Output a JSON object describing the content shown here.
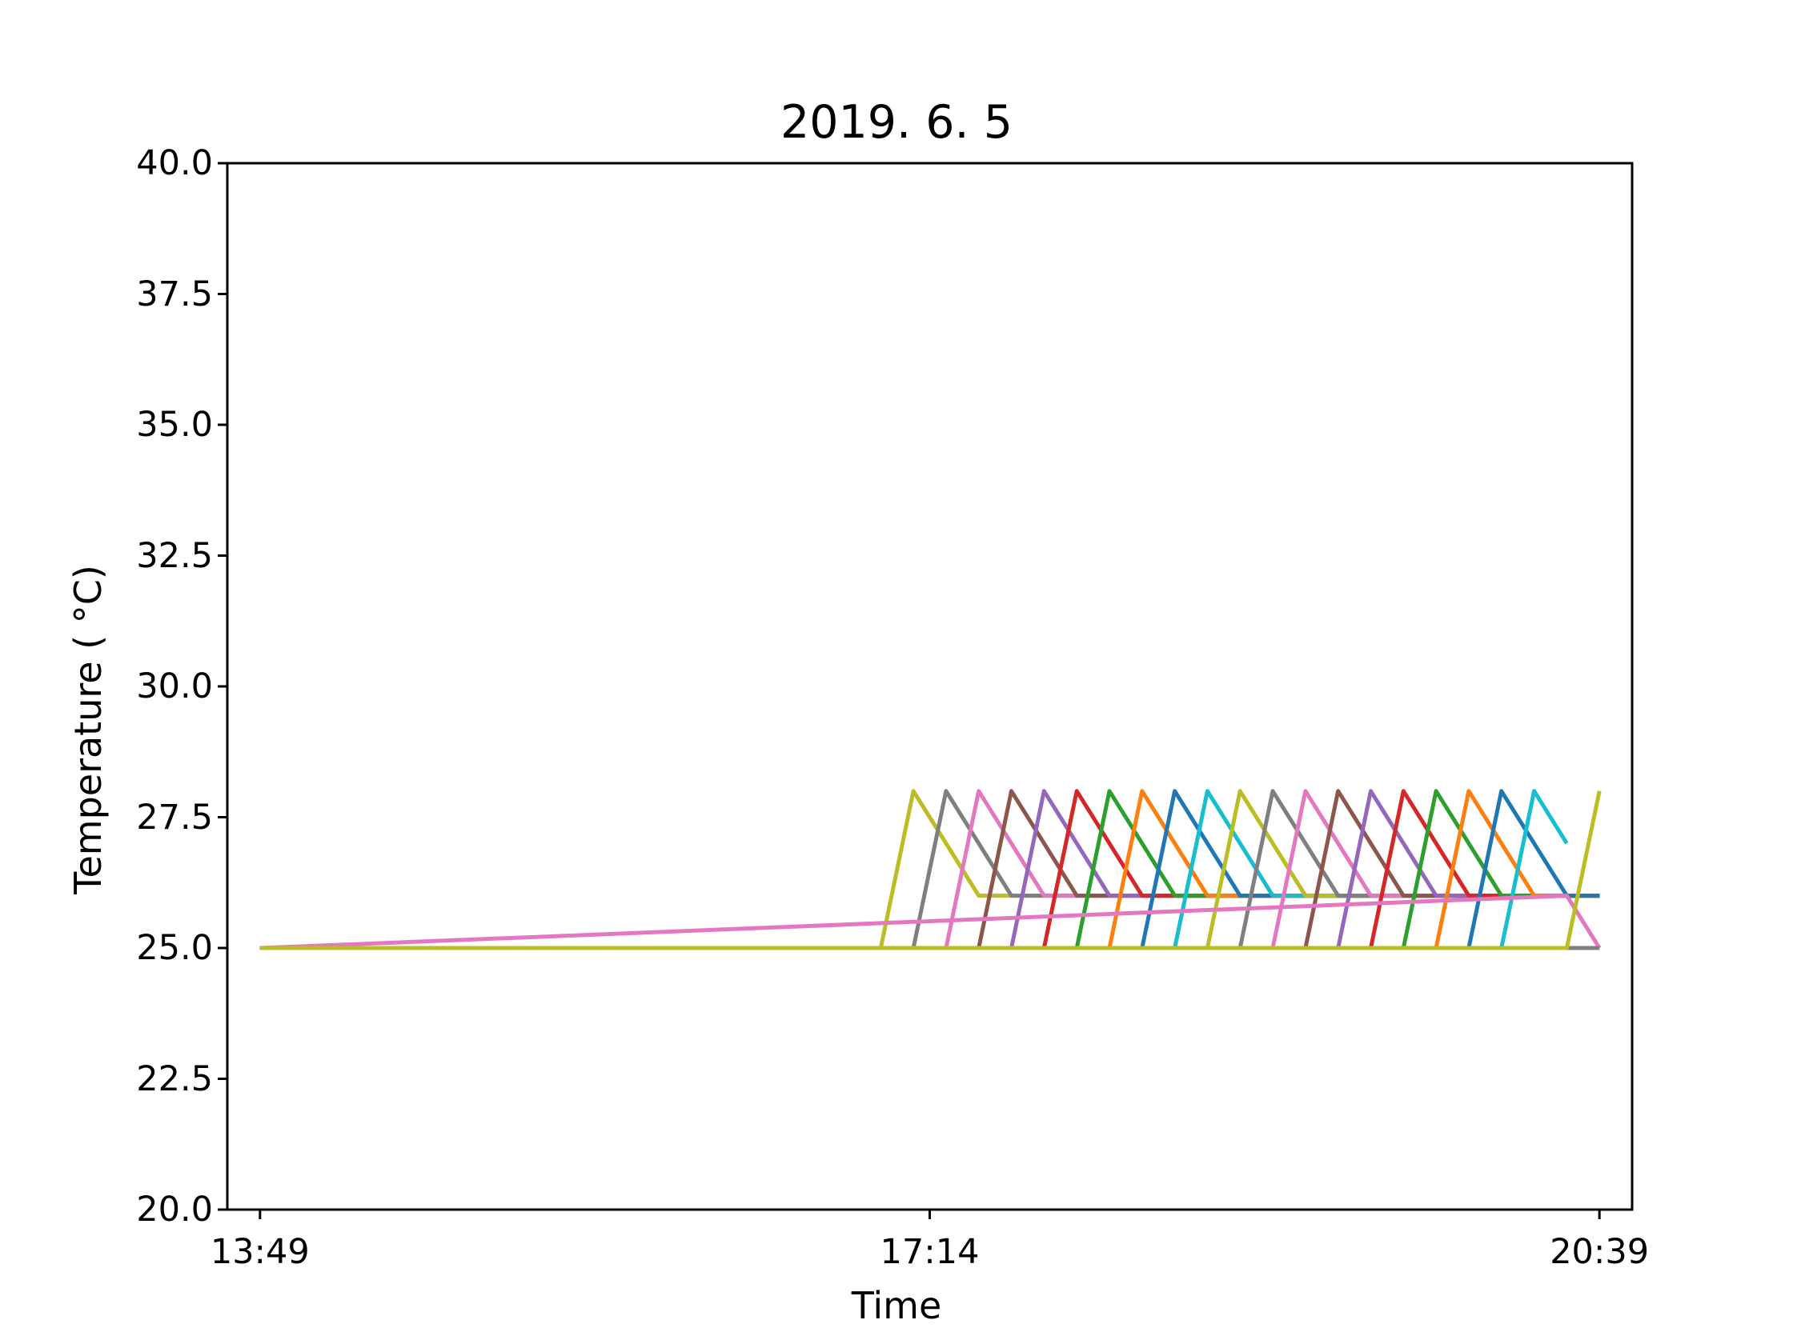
{
  "chart_data": {
    "type": "line",
    "title": "2019. 6. 5",
    "xlabel": "Time",
    "ylabel": "Temperature ($^\\circ$C)",
    "ylabel_display": "Temperature ( °C)",
    "ylim": [
      20.0,
      40.0
    ],
    "xlim": [
      "13:39",
      "20:49"
    ],
    "yticks": [
      "20.0",
      "22.5",
      "25.0",
      "27.5",
      "30.0",
      "32.5",
      "35.0",
      "37.5",
      "40.0"
    ],
    "xticks": [
      "13:49",
      "17:14",
      "20:39"
    ],
    "grid": false,
    "legend": "none",
    "baseline_value": 25.0,
    "series": [
      {
        "color": "#bcbd22",
        "points": [
          [
            "13:49",
            25.0
          ],
          [
            "16:59",
            25.0
          ],
          [
            "17:09",
            28.0
          ],
          [
            "17:29",
            26.0
          ],
          [
            "20:39",
            26.0
          ]
        ]
      },
      {
        "color": "#7f7f7f",
        "points": [
          [
            "13:49",
            25.0
          ],
          [
            "17:09",
            25.0
          ],
          [
            "17:19",
            28.0
          ],
          [
            "17:39",
            26.0
          ],
          [
            "20:39",
            26.0
          ]
        ]
      },
      {
        "color": "#e377c2",
        "points": [
          [
            "13:49",
            25.0
          ],
          [
            "17:19",
            25.0
          ],
          [
            "17:29",
            28.0
          ],
          [
            "17:49",
            26.0
          ],
          [
            "20:39",
            26.0
          ]
        ]
      },
      {
        "color": "#8c564b",
        "points": [
          [
            "13:49",
            25.0
          ],
          [
            "17:29",
            25.0
          ],
          [
            "17:39",
            28.0
          ],
          [
            "17:59",
            26.0
          ],
          [
            "20:39",
            26.0
          ]
        ]
      },
      {
        "color": "#9467bd",
        "points": [
          [
            "13:49",
            25.0
          ],
          [
            "17:39",
            25.0
          ],
          [
            "17:49",
            28.0
          ],
          [
            "18:09",
            26.0
          ],
          [
            "20:39",
            26.0
          ]
        ]
      },
      {
        "color": "#d62728",
        "points": [
          [
            "13:49",
            25.0
          ],
          [
            "17:49",
            25.0
          ],
          [
            "17:59",
            28.0
          ],
          [
            "18:19",
            26.0
          ],
          [
            "20:39",
            26.0
          ]
        ]
      },
      {
        "color": "#2ca02c",
        "points": [
          [
            "13:49",
            25.0
          ],
          [
            "17:59",
            25.0
          ],
          [
            "18:09",
            28.0
          ],
          [
            "18:29",
            26.0
          ],
          [
            "20:39",
            26.0
          ]
        ]
      },
      {
        "color": "#ff7f0e",
        "points": [
          [
            "13:49",
            25.0
          ],
          [
            "18:09",
            25.0
          ],
          [
            "18:19",
            28.0
          ],
          [
            "18:39",
            26.0
          ],
          [
            "20:39",
            26.0
          ]
        ]
      },
      {
        "color": "#1f77b4",
        "points": [
          [
            "13:49",
            25.0
          ],
          [
            "18:19",
            25.0
          ],
          [
            "18:29",
            28.0
          ],
          [
            "18:49",
            26.0
          ],
          [
            "20:39",
            26.0
          ]
        ]
      },
      {
        "color": "#17becf",
        "points": [
          [
            "13:49",
            25.0
          ],
          [
            "18:29",
            25.0
          ],
          [
            "18:39",
            28.0
          ],
          [
            "18:59",
            26.0
          ],
          [
            "20:39",
            26.0
          ]
        ]
      },
      {
        "color": "#bcbd22",
        "points": [
          [
            "13:49",
            25.0
          ],
          [
            "18:39",
            25.0
          ],
          [
            "18:49",
            28.0
          ],
          [
            "19:09",
            26.0
          ],
          [
            "20:39",
            26.0
          ]
        ]
      },
      {
        "color": "#7f7f7f",
        "points": [
          [
            "13:49",
            25.0
          ],
          [
            "18:49",
            25.0
          ],
          [
            "18:59",
            28.0
          ],
          [
            "19:19",
            26.0
          ],
          [
            "20:39",
            26.0
          ]
        ]
      },
      {
        "color": "#e377c2",
        "points": [
          [
            "13:49",
            25.0
          ],
          [
            "18:59",
            25.0
          ],
          [
            "19:09",
            28.0
          ],
          [
            "19:29",
            26.0
          ],
          [
            "20:39",
            26.0
          ]
        ]
      },
      {
        "color": "#8c564b",
        "points": [
          [
            "13:49",
            25.0
          ],
          [
            "19:09",
            25.0
          ],
          [
            "19:19",
            28.0
          ],
          [
            "19:39",
            26.0
          ],
          [
            "20:39",
            26.0
          ]
        ]
      },
      {
        "color": "#9467bd",
        "points": [
          [
            "13:49",
            25.0
          ],
          [
            "19:19",
            25.0
          ],
          [
            "19:29",
            28.0
          ],
          [
            "19:49",
            26.0
          ],
          [
            "20:39",
            26.0
          ]
        ]
      },
      {
        "color": "#d62728",
        "points": [
          [
            "13:49",
            25.0
          ],
          [
            "19:29",
            25.0
          ],
          [
            "19:39",
            28.0
          ],
          [
            "19:59",
            26.0
          ],
          [
            "20:39",
            26.0
          ]
        ]
      },
      {
        "color": "#2ca02c",
        "points": [
          [
            "13:49",
            25.0
          ],
          [
            "19:39",
            25.0
          ],
          [
            "19:49",
            28.0
          ],
          [
            "20:09",
            26.0
          ],
          [
            "20:39",
            26.0
          ]
        ]
      },
      {
        "color": "#ff7f0e",
        "points": [
          [
            "13:49",
            25.0
          ],
          [
            "19:49",
            25.0
          ],
          [
            "19:59",
            28.0
          ],
          [
            "20:19",
            26.0
          ],
          [
            "20:39",
            26.0
          ]
        ]
      },
      {
        "color": "#1f77b4",
        "points": [
          [
            "13:49",
            25.0
          ],
          [
            "19:59",
            25.0
          ],
          [
            "20:09",
            28.0
          ],
          [
            "20:29",
            26.0
          ],
          [
            "20:39",
            26.0
          ]
        ]
      },
      {
        "color": "#17becf",
        "points": [
          [
            "13:49",
            25.0
          ],
          [
            "20:09",
            25.0
          ],
          [
            "20:19",
            28.0
          ],
          [
            "20:29",
            27.0
          ]
        ]
      },
      {
        "color": "#e377c2",
        "points": [
          [
            "13:49",
            25.0
          ],
          [
            "20:29",
            26.0
          ],
          [
            "20:39",
            25.0
          ]
        ]
      },
      {
        "color": "#7f7f7f",
        "points": [
          [
            "13:49",
            25.0
          ],
          [
            "20:29",
            25.0
          ],
          [
            "20:39",
            25.0
          ]
        ]
      },
      {
        "color": "#bcbd22",
        "points": [
          [
            "13:49",
            25.0
          ],
          [
            "20:29",
            25.0
          ],
          [
            "20:39",
            28.0
          ]
        ]
      }
    ]
  }
}
